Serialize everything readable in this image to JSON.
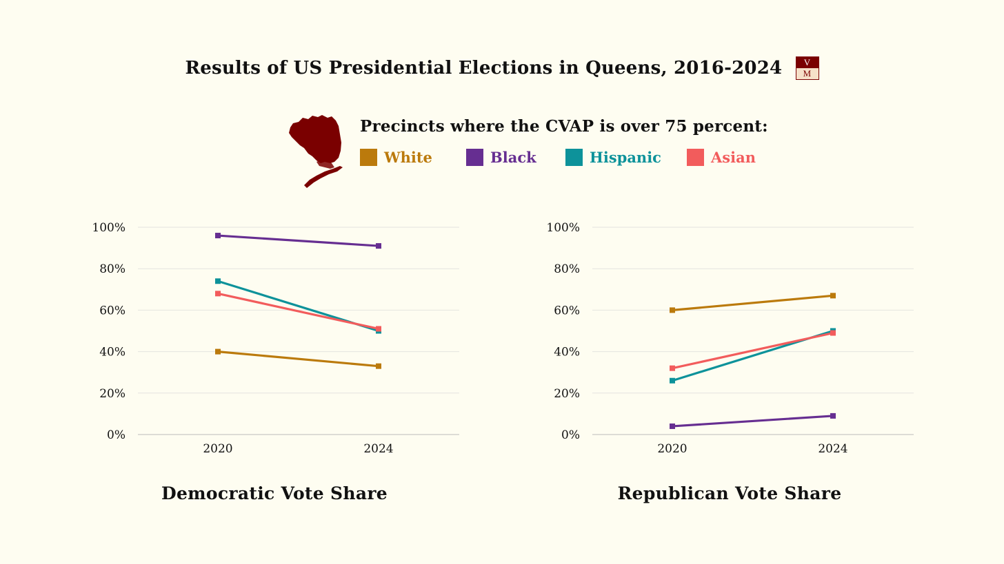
{
  "header": {
    "title": "Results of US Presidential Elections in Queens, 2016-2024",
    "logo_top": "V",
    "logo_bottom": "M"
  },
  "subtitle": "Precincts where the CVAP is over 75 percent:",
  "legend": [
    {
      "label": "White",
      "color": "#bb7a0c"
    },
    {
      "label": "Black",
      "color": "#662e91"
    },
    {
      "label": "Hispanic",
      "color": "#0d929a"
    },
    {
      "label": "Asian",
      "color": "#f25c5c"
    }
  ],
  "colors": {
    "background": "#fefdf1",
    "map": "#7a0000",
    "grid": "#e4e4e0",
    "axis": "#bcbcbc"
  },
  "chart_data": [
    {
      "type": "line",
      "title": "Democratic Vote Share",
      "categories": [
        "2020",
        "2024"
      ],
      "ylim": [
        0,
        100
      ],
      "yticks": [
        "0%",
        "20%",
        "40%",
        "60%",
        "80%",
        "100%"
      ],
      "grid": true,
      "series": [
        {
          "name": "White",
          "color": "#bb7a0c",
          "values": [
            40,
            33
          ]
        },
        {
          "name": "Black",
          "color": "#662e91",
          "values": [
            96,
            91
          ]
        },
        {
          "name": "Hispanic",
          "color": "#0d929a",
          "values": [
            74,
            50
          ]
        },
        {
          "name": "Asian",
          "color": "#f25c5c",
          "values": [
            68,
            51
          ]
        }
      ]
    },
    {
      "type": "line",
      "title": "Republican Vote Share",
      "categories": [
        "2020",
        "2024"
      ],
      "ylim": [
        0,
        100
      ],
      "yticks": [
        "0%",
        "20%",
        "40%",
        "60%",
        "80%",
        "100%"
      ],
      "grid": true,
      "series": [
        {
          "name": "White",
          "color": "#bb7a0c",
          "values": [
            60,
            67
          ]
        },
        {
          "name": "Black",
          "color": "#662e91",
          "values": [
            4,
            9
          ]
        },
        {
          "name": "Hispanic",
          "color": "#0d929a",
          "values": [
            26,
            50
          ]
        },
        {
          "name": "Asian",
          "color": "#f25c5c",
          "values": [
            32,
            49
          ]
        }
      ]
    }
  ]
}
